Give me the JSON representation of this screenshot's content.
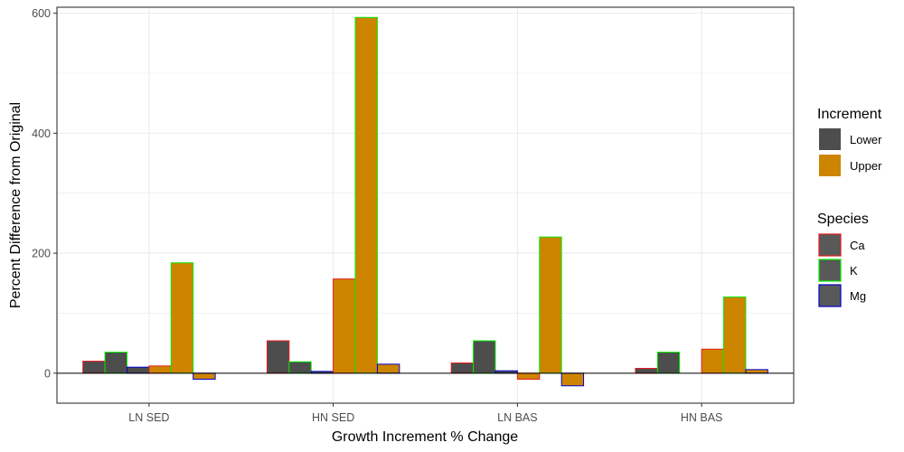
{
  "chart_data": {
    "type": "bar",
    "title": "",
    "xlabel": "Growth Increment % Change",
    "ylabel": "Percent Difference from Original",
    "ylim": [
      -50,
      610
    ],
    "yticks": [
      0,
      200,
      400,
      600
    ],
    "grid": true,
    "legend_position": "right",
    "categories": [
      "LN SED",
      "HN SED",
      "LN BAS",
      "HN BAS"
    ],
    "series": [
      {
        "increment": "Lower",
        "species": "Ca",
        "values": [
          20,
          54,
          17,
          8
        ]
      },
      {
        "increment": "Lower",
        "species": "K",
        "values": [
          35,
          19,
          54,
          35
        ]
      },
      {
        "increment": "Lower",
        "species": "Mg",
        "values": [
          10,
          3,
          4,
          0
        ]
      },
      {
        "increment": "Upper",
        "species": "Ca",
        "values": [
          12,
          157,
          -10,
          40
        ]
      },
      {
        "increment": "Upper",
        "species": "K",
        "values": [
          184,
          593,
          227,
          127
        ]
      },
      {
        "increment": "Upper",
        "species": "Mg",
        "values": [
          -10,
          15,
          -21,
          6
        ]
      }
    ],
    "legends": {
      "increment": {
        "title": "Increment",
        "items": [
          {
            "label": "Lower",
            "fill": "#4d4d4d"
          },
          {
            "label": "Upper",
            "fill": "#cd8500"
          }
        ]
      },
      "species": {
        "title": "Species",
        "items": [
          {
            "label": "Ca",
            "stroke": "#e31a1c"
          },
          {
            "label": "K",
            "stroke": "#00ee00"
          },
          {
            "label": "Mg",
            "stroke": "#0000cd"
          }
        ]
      }
    },
    "colors": {
      "Lower": "#4d4d4d",
      "Upper": "#cd8500",
      "Ca": "#e31a1c",
      "K": "#00ee00",
      "Mg": "#0000cd",
      "species_key_fill": "#595959",
      "grid": "#ebebeb",
      "panel_border": "#333333",
      "zero_line": "#000000"
    }
  }
}
